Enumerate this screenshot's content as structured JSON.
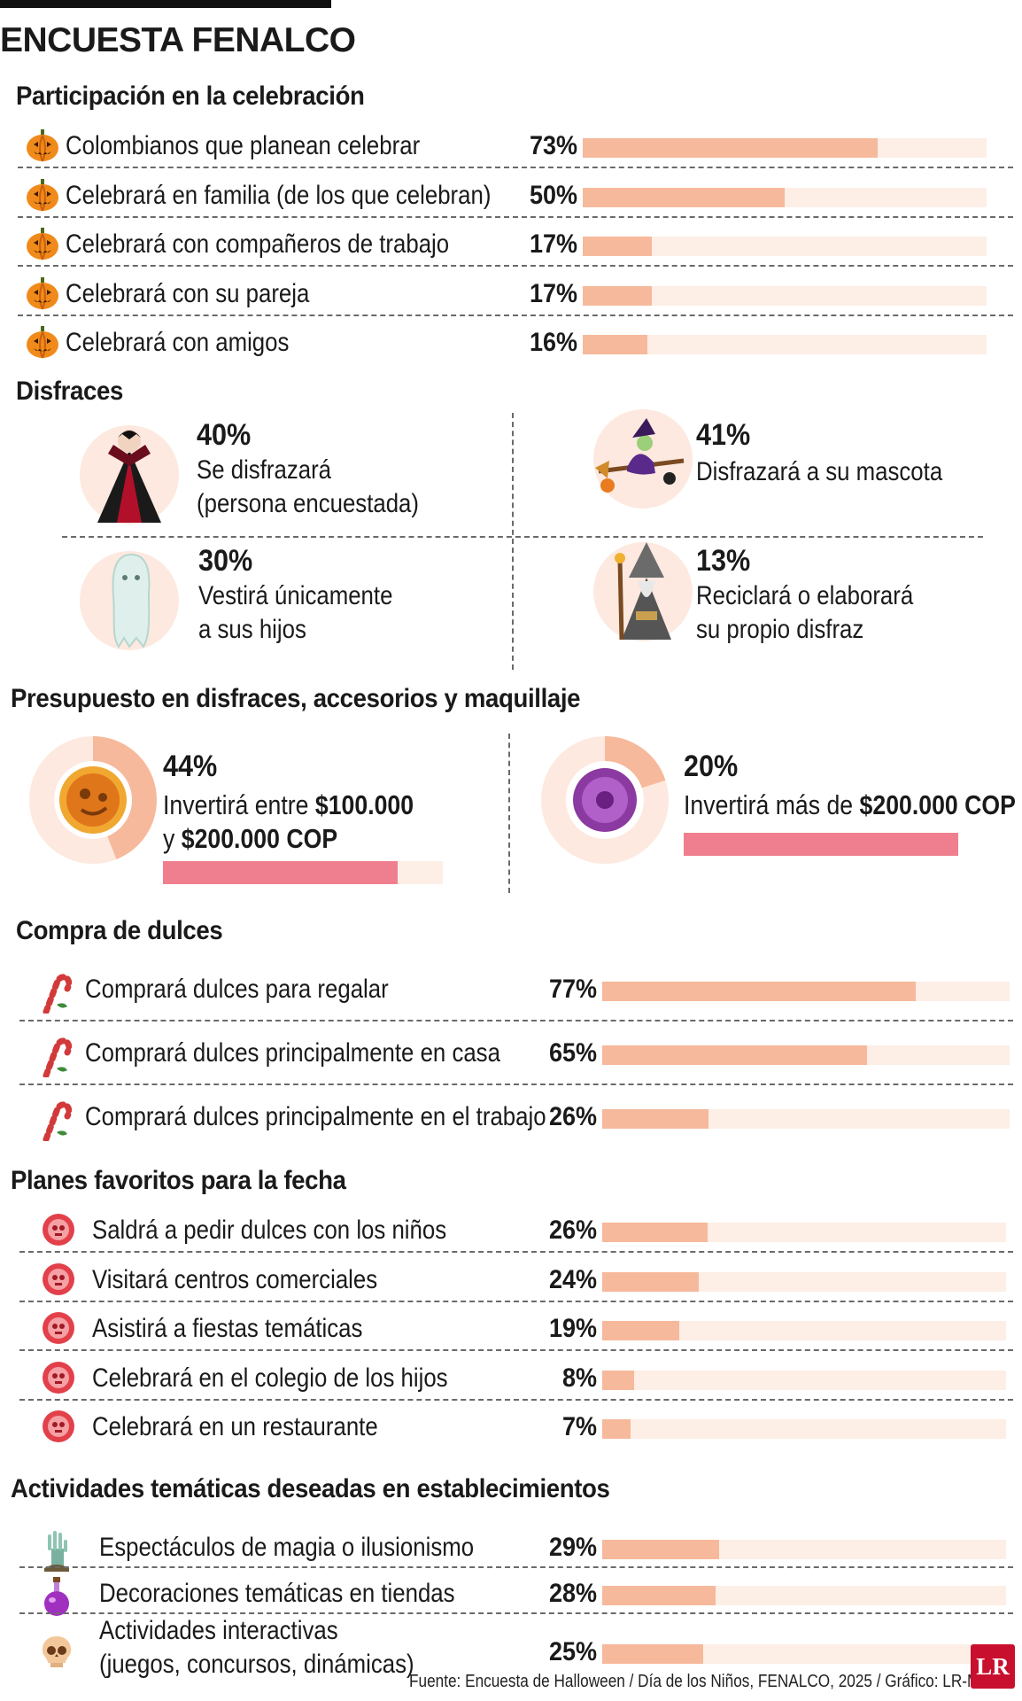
{
  "title": "ENCUESTA FENALCO",
  "colors": {
    "bar_fill": "#f6b99b",
    "bar_track": "#fdeee6",
    "budget_fill": "#ef7f8e",
    "logo": "#c8102e"
  },
  "sections": {
    "participacion": {
      "title": "Participación en la celebración",
      "icon": "pumpkin-icon",
      "rows": [
        {
          "label": "Colombianos que planean celebrar",
          "pct": "73%",
          "value": 73
        },
        {
          "label": "Celebrará en familia (de los que celebran)",
          "pct": "50%",
          "value": 50
        },
        {
          "label": "Celebrará con compañeros de trabajo",
          "pct": "17%",
          "value": 17
        },
        {
          "label": "Celebrará con su pareja",
          "pct": "17%",
          "value": 17
        },
        {
          "label": "Celebrará con amigos",
          "pct": "16%",
          "value": 16
        }
      ]
    },
    "disfraces": {
      "title": "Disfraces",
      "items": [
        {
          "pct": "40%",
          "line1": "Se disfrazará",
          "line2": "(persona encuestada)",
          "icon": "vampire-icon"
        },
        {
          "pct": "41%",
          "line1": "Disfrazará a su mascota",
          "line2": "",
          "icon": "witch-icon"
        },
        {
          "pct": "30%",
          "line1": "Vestirá únicamente",
          "line2": "a sus hijos",
          "icon": "ghost-icon"
        },
        {
          "pct": "13%",
          "line1": "Reciclará o elaborará",
          "line2": "su propio disfraz",
          "icon": "wizard-icon"
        }
      ]
    },
    "presupuesto": {
      "title": "Presupuesto en disfraces, accesorios y maquillaje",
      "items": [
        {
          "pct": "44%",
          "value": 44,
          "text_a": "Invertirá entre ",
          "bold_a": "$100.000",
          "text_b": "y ",
          "bold_b": "$200.000 COP",
          "icon": "orange-candy-icon"
        },
        {
          "pct": "20%",
          "value": 20,
          "text_a": "Invertirá más de ",
          "bold_a": "$200.000 COP",
          "icon": "purple-candy-icon"
        }
      ]
    },
    "dulces": {
      "title": "Compra de dulces",
      "icon": "candy-cane-icon",
      "rows": [
        {
          "label": "Comprará dulces para regalar",
          "pct": "77%",
          "value": 77
        },
        {
          "label": "Comprará dulces principalmente en casa",
          "pct": "65%",
          "value": 65
        },
        {
          "label": "Comprará dulces principalmente en el trabajo",
          "pct": "26%",
          "value": 26
        }
      ]
    },
    "planes": {
      "title": "Planes favoritos para la fecha",
      "icon": "skull-candy-icon",
      "rows": [
        {
          "label": "Saldrá a pedir dulces con los niños",
          "pct": "26%",
          "value": 26
        },
        {
          "label": "Visitará centros comerciales",
          "pct": "24%",
          "value": 24
        },
        {
          "label": "Asistirá a fiestas temáticas",
          "pct": "19%",
          "value": 19
        },
        {
          "label": "Celebrará en el colegio de los hijos",
          "pct": "8%",
          "value": 8
        },
        {
          "label": "Celebrará en un restaurante",
          "pct": "7%",
          "value": 7
        }
      ]
    },
    "actividades": {
      "title": "Actividades temáticas deseadas en establecimientos",
      "rows": [
        {
          "label": "Espectáculos de magia o ilusionismo",
          "pct": "29%",
          "value": 29,
          "icon": "zombie-hand-icon"
        },
        {
          "label": "Decoraciones temáticas en tiendas",
          "pct": "28%",
          "value": 28,
          "icon": "potion-icon"
        },
        {
          "label": "Actividades interactivas",
          "label2": "(juegos, concursos, dinámicas)",
          "pct": "25%",
          "value": 25,
          "icon": "skull-icon"
        }
      ]
    }
  },
  "source": "Fuente:  Encuesta de Halloween / Día de los Niños, FENALCO, 2025 / Gráfico: LR-MB",
  "logo": "LR",
  "chart_data": [
    {
      "type": "bar",
      "title": "Participación en la celebración",
      "categories": [
        "Colombianos que planean celebrar",
        "Celebrará en familia (de los que celebran)",
        "Celebrará con compañeros de trabajo",
        "Celebrará con su pareja",
        "Celebrará con amigos"
      ],
      "values": [
        73,
        50,
        17,
        17,
        16
      ],
      "ylim": [
        0,
        100
      ]
    },
    {
      "type": "table",
      "title": "Disfraces",
      "categories": [
        "Se disfrazará (persona encuestada)",
        "Disfrazará a su mascota",
        "Vestirá únicamente a sus hijos",
        "Reciclará o elaborará su propio disfraz"
      ],
      "values": [
        40,
        41,
        30,
        13
      ]
    },
    {
      "type": "bar",
      "title": "Presupuesto en disfraces, accesorios y maquillaje",
      "categories": [
        "Invertirá entre $100.000 y $200.000 COP",
        "Invertirá más de $200.000 COP"
      ],
      "values": [
        44,
        20
      ],
      "ylim": [
        0,
        100
      ]
    },
    {
      "type": "bar",
      "title": "Compra de dulces",
      "categories": [
        "Comprará dulces para regalar",
        "Comprará dulces principalmente en casa",
        "Comprará dulces principalmente en el trabajo"
      ],
      "values": [
        77,
        65,
        26
      ],
      "ylim": [
        0,
        100
      ]
    },
    {
      "type": "bar",
      "title": "Planes favoritos para la fecha",
      "categories": [
        "Saldrá a pedir dulces con los niños",
        "Visitará centros comerciales",
        "Asistirá a fiestas temáticas",
        "Celebrará en el colegio de los hijos",
        "Celebrará en un restaurante"
      ],
      "values": [
        26,
        24,
        19,
        8,
        7
      ],
      "ylim": [
        0,
        100
      ]
    },
    {
      "type": "bar",
      "title": "Actividades temáticas deseadas en establecimientos",
      "categories": [
        "Espectáculos de magia o ilusionismo",
        "Decoraciones temáticas en tiendas",
        "Actividades interactivas (juegos, concursos, dinámicas)"
      ],
      "values": [
        29,
        28,
        25
      ],
      "ylim": [
        0,
        100
      ]
    }
  ]
}
